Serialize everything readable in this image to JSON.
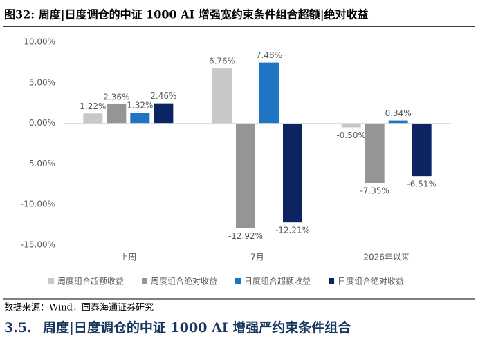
{
  "chart_data": {
    "type": "bar",
    "title": "图32:  周度|日度调仓的中证 1000 AI 增强宽约束条件组合超额|绝对收益",
    "categories": [
      "上周",
      "7月",
      "2026年以来"
    ],
    "series": [
      {
        "name": "周度组合超额收益",
        "color": "#c8c8c8",
        "values": [
          1.22,
          6.76,
          -0.5
        ],
        "value_labels": [
          "1.22%",
          "6.76%",
          "-0.50%"
        ]
      },
      {
        "name": "周度组合绝对收益",
        "color": "#959595",
        "values": [
          2.36,
          -12.92,
          -7.35
        ],
        "value_labels": [
          "2.36%",
          "-12.92%",
          "-7.35%"
        ]
      },
      {
        "name": "日度组合超额收益",
        "color": "#1f74c4",
        "values": [
          1.32,
          7.48,
          0.34
        ],
        "value_labels": [
          "1.32%",
          "7.48%",
          "0.34%"
        ]
      },
      {
        "name": "日度组合绝对收益",
        "color": "#0c2461",
        "values": [
          2.46,
          -12.21,
          -6.51
        ],
        "value_labels": [
          "2.46%",
          "-12.21%",
          "-6.51%"
        ]
      }
    ],
    "ylim": [
      -15,
      10
    ],
    "yticks": [
      {
        "value": -15,
        "label": "-15.00%"
      },
      {
        "value": -10,
        "label": "-10.00%"
      },
      {
        "value": -5,
        "label": "-5.00%"
      },
      {
        "value": 0,
        "label": "0.00%"
      },
      {
        "value": 5,
        "label": "5.00%"
      },
      {
        "value": 10,
        "label": "10.00%"
      }
    ],
    "legend": "bottom",
    "grid": false
  },
  "source": "数据来源：Wind，国泰海通证券研究",
  "section": {
    "number": "3.5.",
    "title": "周度|日度调仓的中证 1000 AI 增强严约束条件组合"
  }
}
